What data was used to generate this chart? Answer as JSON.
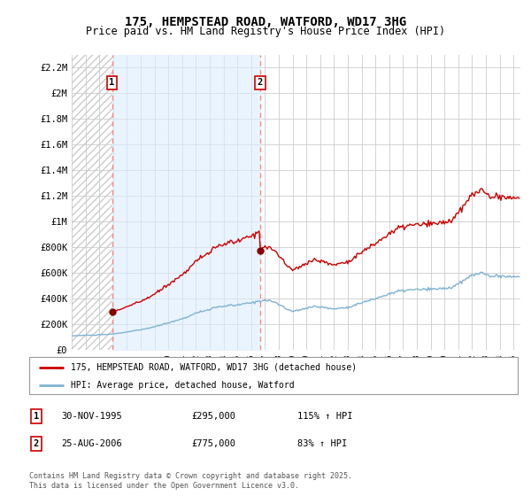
{
  "title": "175, HEMPSTEAD ROAD, WATFORD, WD17 3HG",
  "subtitle": "Price paid vs. HM Land Registry's House Price Index (HPI)",
  "legend_label_red": "175, HEMPSTEAD ROAD, WATFORD, WD17 3HG (detached house)",
  "legend_label_blue": "HPI: Average price, detached house, Watford",
  "footnote": "Contains HM Land Registry data © Crown copyright and database right 2025.\nThis data is licensed under the Open Government Licence v3.0.",
  "sale1_label": "1",
  "sale1_date": "30-NOV-1995",
  "sale1_price": "£295,000",
  "sale1_hpi": "115% ↑ HPI",
  "sale1_year": 1995.917,
  "sale1_value": 295000,
  "sale2_label": "2",
  "sale2_date": "25-AUG-2006",
  "sale2_price": "£775,000",
  "sale2_hpi": "83% ↑ HPI",
  "sale2_year": 2006.646,
  "sale2_value": 775000,
  "ylim": [
    0,
    2300000
  ],
  "yticks": [
    0,
    200000,
    400000,
    600000,
    800000,
    1000000,
    1200000,
    1400000,
    1600000,
    1800000,
    2000000,
    2200000
  ],
  "ytick_labels": [
    "£0",
    "£200K",
    "£400K",
    "£600K",
    "£800K",
    "£1M",
    "£1.2M",
    "£1.4M",
    "£1.6M",
    "£1.8M",
    "£2M",
    "£2.2M"
  ],
  "red_color": "#cc0000",
  "blue_color": "#7fb3d3",
  "blue_fill_color": "#ddeeff",
  "hatch_color": "#cccccc",
  "grid_color": "#cccccc",
  "sale_marker_color": "#880000",
  "dashed_line_color": "#ff8888",
  "background_color": "#ffffff",
  "xmin": 1993.0,
  "xmax": 2025.5
}
